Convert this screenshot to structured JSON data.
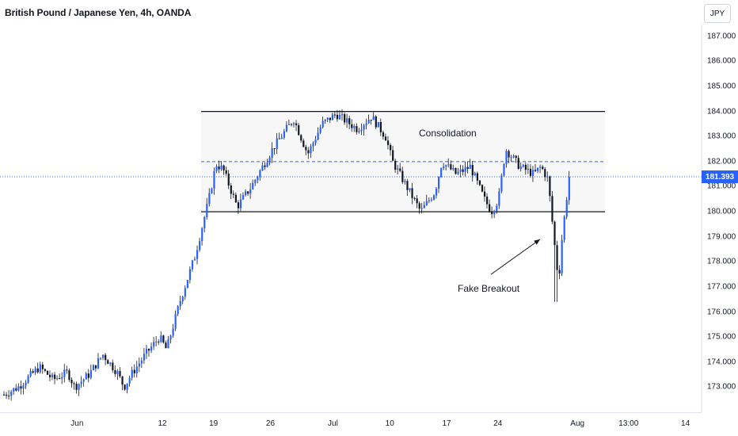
{
  "header": {
    "title": "British Pound / Japanese Yen, 4h, OANDA",
    "currency_button": "JPY"
  },
  "colors": {
    "up": "#2962ff",
    "down": "#131722",
    "last_price_line": "#2962ff",
    "range_fill": "#f7f7f7",
    "range_border": "#131722"
  },
  "annotations": {
    "consolidation": "Consolidation",
    "fake_breakout": "Fake Breakout"
  },
  "chart_data": {
    "type": "candlestick",
    "symbol": "British Pound / Japanese Yen",
    "interval": "4h",
    "source": "OANDA",
    "ylim": [
      172,
      187.5
    ],
    "y_ticks": [
      173.0,
      174.0,
      175.0,
      176.0,
      177.0,
      178.0,
      179.0,
      180.0,
      181.0,
      182.0,
      183.0,
      184.0,
      185.0,
      186.0,
      187.0
    ],
    "y_tick_labels": [
      "173.000",
      "174.000",
      "175.000",
      "176.000",
      "177.000",
      "178.000",
      "179.000",
      "180.000",
      "181.000",
      "182.000",
      "183.000",
      "184.000",
      "185.000",
      "186.000",
      "187.000"
    ],
    "x_tick_labels": [
      "Jun",
      "12",
      "19",
      "26",
      "Jul",
      "10",
      "17",
      "24",
      "Aug",
      "13:00",
      "14"
    ],
    "last_price": 181.393,
    "last_price_label": "181.393",
    "consolidation_range": {
      "high": 184.0,
      "low": 180.0,
      "mid": 182.0
    },
    "breakout_low": 176.4,
    "path_points": [
      [
        172.7,
        0.0
      ],
      [
        173.0,
        0.02
      ],
      [
        173.8,
        0.05
      ],
      [
        173.3,
        0.07
      ],
      [
        173.6,
        0.09
      ],
      [
        173.0,
        0.1
      ],
      [
        173.5,
        0.12
      ],
      [
        174.3,
        0.14
      ],
      [
        173.6,
        0.16
      ],
      [
        173.0,
        0.17
      ],
      [
        173.5,
        0.18
      ],
      [
        174.3,
        0.2
      ],
      [
        175.0,
        0.22
      ],
      [
        174.5,
        0.23
      ],
      [
        176.5,
        0.25
      ],
      [
        178.2,
        0.27
      ],
      [
        180.5,
        0.29
      ],
      [
        181.9,
        0.3
      ],
      [
        181.7,
        0.31
      ],
      [
        180.2,
        0.33
      ],
      [
        181.0,
        0.35
      ],
      [
        181.5,
        0.36
      ],
      [
        182.5,
        0.38
      ],
      [
        183.7,
        0.41
      ],
      [
        182.3,
        0.43
      ],
      [
        183.5,
        0.45
      ],
      [
        183.9,
        0.47
      ],
      [
        183.3,
        0.5
      ],
      [
        183.8,
        0.52
      ],
      [
        183.0,
        0.54
      ],
      [
        182.0,
        0.55
      ],
      [
        181.0,
        0.57
      ],
      [
        180.0,
        0.59
      ],
      [
        180.8,
        0.61
      ],
      [
        182.0,
        0.62
      ],
      [
        181.5,
        0.64
      ],
      [
        181.8,
        0.66
      ],
      [
        180.5,
        0.68
      ],
      [
        180.0,
        0.69
      ],
      [
        180.5,
        0.7
      ],
      [
        182.5,
        0.71
      ],
      [
        181.8,
        0.73
      ],
      [
        181.5,
        0.75
      ],
      [
        181.8,
        0.76
      ],
      [
        181.3,
        0.77
      ],
      [
        178.5,
        0.78
      ],
      [
        177.2,
        0.785
      ],
      [
        179.0,
        0.79
      ],
      [
        181.4,
        0.8
      ]
    ]
  }
}
